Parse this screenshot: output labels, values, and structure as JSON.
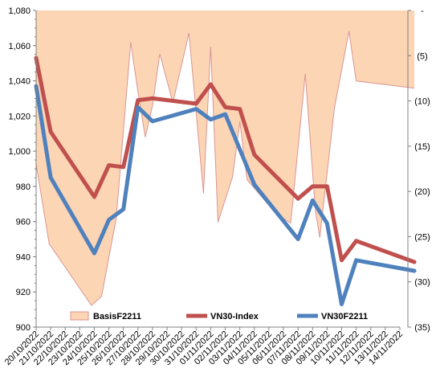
{
  "chart_data": {
    "type": "line",
    "categories": [
      "20/10/2022",
      "21/10/2022",
      "22/10/2022",
      "23/10/2022",
      "24/10/2022",
      "25/10/2022",
      "26/10/2022",
      "27/10/2022",
      "28/10/2022",
      "29/10/2022",
      "30/10/2022",
      "31/10/2022",
      "01/11/2022",
      "02/11/2022",
      "03/11/2022",
      "04/11/2022",
      "05/11/2022",
      "06/11/2022",
      "07/11/2022",
      "08/11/2022",
      "09/11/2022",
      "10/11/2022",
      "11/11/2022",
      "12/11/2022",
      "13/11/2022",
      "14/11/2022"
    ],
    "left_axis": {
      "ylim": [
        900,
        1080
      ],
      "ticks": [
        "900",
        "920",
        "940",
        "960",
        "980",
        "1,000",
        "1,020",
        "1,040",
        "1,060",
        "1,080"
      ]
    },
    "right_axis": {
      "inverted": true,
      "ylim": [
        0,
        35
      ],
      "ticks": [
        "-",
        "(5)",
        "(10)",
        "(15)",
        "(20)",
        "(25)",
        "(30)",
        "(35)"
      ]
    },
    "series": [
      {
        "name": "BasisF2211",
        "type": "area",
        "axis": "right",
        "color": "#fcd5b5",
        "edge_color": "#d99694",
        "x": [
          0,
          0.9,
          3.8,
          4.5,
          5.5,
          6.5,
          7.0,
          7.5,
          8.0,
          8.5,
          9.4,
          10.5,
          11.5,
          12.0,
          12.5,
          13.5,
          14.0,
          14.5,
          15.5,
          16.5,
          17.5,
          18.5,
          19.2,
          19.5,
          20.5,
          21.5,
          22.0,
          26.0
        ],
        "values": [
          17,
          25.8,
          32.6,
          31.6,
          23,
          3.5,
          9,
          14,
          10.5,
          4.8,
          10.2,
          2.5,
          20.2,
          4,
          23.4,
          18.4,
          12.3,
          18.7,
          20.6,
          22.5,
          23.5,
          7,
          22.2,
          25.1,
          10.8,
          2.3,
          7.8,
          8.6
        ],
        "values_note": "[20/10 17, 21/10 25.8, 24/10 32.6, 25/10 31.6, 26/10 23, 27/10 3.5, 28/10 9, 29/10 14, 30/10 10.5, 31/10 4.8, 01/11 10.2, 02/11 2.5, 03/11 20.2, 04/11 4, 05/11 23.4, 06/11 18.4, 07/11 12.3, 08/11 18.7, 09/11 20.6, 10/11 22.5, 11/11 23.5, 12/11 7, 13/11 22.2, 14/11 25.1, -, -, -, -]"
      },
      {
        "name": "VN30-Index",
        "type": "line",
        "axis": "left",
        "color": "#c0504d",
        "x": [
          0,
          1,
          4,
          5,
          6,
          7,
          8,
          11,
          12,
          13,
          14,
          15,
          18,
          19,
          20,
          21,
          22,
          26
        ],
        "values": [
          1053,
          1011,
          974,
          992,
          991,
          1029,
          1030,
          1027,
          1038,
          1025,
          1024,
          998,
          973,
          980,
          980,
          938,
          949,
          937
        ]
      },
      {
        "name": "VN30F2211",
        "type": "line",
        "axis": "left",
        "color": "#4f81bd",
        "x": [
          0,
          1,
          4,
          5,
          6,
          7,
          8,
          11,
          12,
          13,
          15,
          18,
          19,
          20,
          21,
          22,
          26
        ],
        "values": [
          1037,
          985,
          942,
          961,
          967,
          1025,
          1017,
          1024,
          1018,
          1021,
          981,
          950,
          972,
          959,
          913,
          938,
          932
        ]
      }
    ],
    "grid": false,
    "legend_placement": "bottom-inside"
  }
}
